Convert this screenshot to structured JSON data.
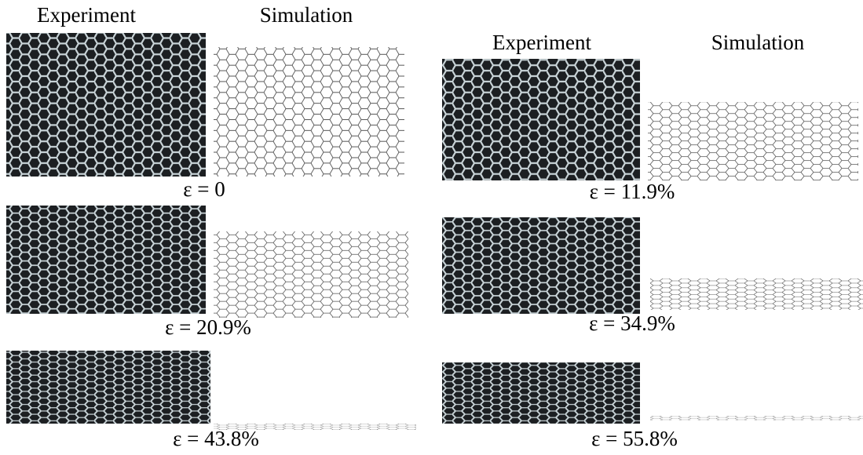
{
  "columns": [
    {
      "headers": {
        "experiment": "Experiment",
        "simulation": "Simulation"
      },
      "panels": [
        {
          "label": "ε = 0"
        },
        {
          "label": "ε = 20.9%"
        },
        {
          "label": "ε = 43.8%"
        }
      ]
    },
    {
      "headers": {
        "experiment": "Experiment",
        "simulation": "Simulation"
      },
      "panels": [
        {
          "label": "ε = 11.9%"
        },
        {
          "label": "ε = 34.9%"
        },
        {
          "label": "ε = 55.8%"
        }
      ]
    }
  ]
}
